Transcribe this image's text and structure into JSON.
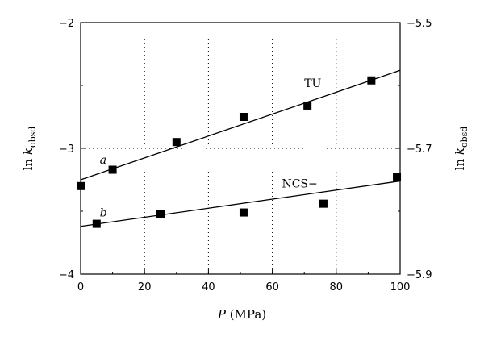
{
  "chart_data": {
    "type": "scatter",
    "xlabel_italic": "P",
    "xlabel_rest": " (MPa)",
    "ylabel_left_main": "ln ",
    "ylabel_left_k": "k",
    "ylabel_left_sub": "obsd",
    "ylabel_right_main": "ln ",
    "ylabel_right_k": "k",
    "ylabel_right_sub": "obsd",
    "xlim": [
      0,
      100
    ],
    "ylim_left": [
      -4,
      -2
    ],
    "ylim_right": [
      -5.9,
      -5.5
    ],
    "x_ticks": [
      0,
      20,
      40,
      60,
      80,
      100
    ],
    "x_tick_labels": [
      "0",
      "20",
      "40",
      "60",
      "80",
      "100"
    ],
    "y_left_ticks": [
      -4,
      -3,
      -2
    ],
    "y_left_tick_labels": [
      "−4",
      "−3",
      "−2"
    ],
    "y_right_ticks": [
      -5.9,
      -5.7,
      -5.5
    ],
    "y_right_tick_labels": [
      "−5.9",
      "−5.7",
      "−5.5"
    ],
    "grid": "dotted vertical at 20, 40, 60, 80; dotted horizontal at -3",
    "series": [
      {
        "name": "TU",
        "axis": "left",
        "points": [
          [
            0,
            -3.3
          ],
          [
            10,
            -3.17
          ],
          [
            30,
            -2.95
          ],
          [
            51,
            -2.75
          ],
          [
            71,
            -2.66
          ],
          [
            91,
            -2.46
          ]
        ],
        "fit": [
          [
            0,
            -3.25
          ],
          [
            100,
            -2.38
          ]
        ]
      },
      {
        "name": "NCS−",
        "axis": "right",
        "points": [
          [
            5,
            -5.82
          ],
          [
            25,
            -5.804
          ],
          [
            51,
            -5.802
          ],
          [
            76,
            -5.788
          ],
          [
            99,
            -5.746
          ]
        ],
        "fit": [
          [
            0,
            -5.824
          ],
          [
            100,
            -5.752
          ]
        ]
      }
    ],
    "annotations": [
      {
        "text": "TU",
        "x": 70,
        "y": -2.48,
        "italic": false
      },
      {
        "text": "a",
        "x": 6,
        "y": -3.09,
        "italic": true
      },
      {
        "text": "NCS−",
        "x": 63,
        "y": -3.28,
        "italic": false
      },
      {
        "text": "b",
        "x": 6,
        "y": -3.51,
        "italic": true
      }
    ]
  }
}
